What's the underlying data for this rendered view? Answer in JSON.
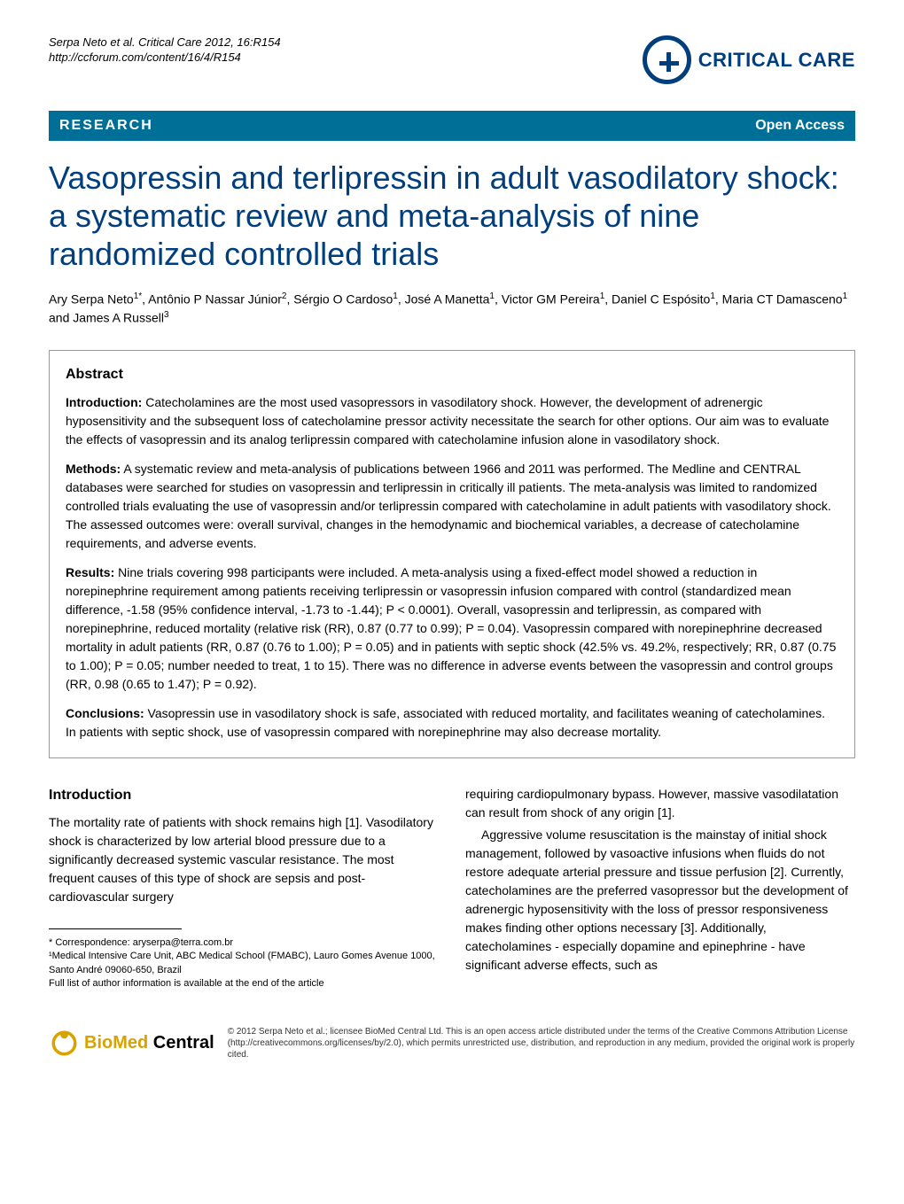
{
  "header": {
    "citation_line1": "Serpa Neto et al. Critical Care 2012, 16:R154",
    "citation_line2": "http://ccforum.com/content/16/4/R154",
    "journal_name": "CRITICAL CARE"
  },
  "research_bar": {
    "label": "RESEARCH",
    "access": "Open Access"
  },
  "title": "Vasopressin and terlipressin in adult vasodilatory shock: a systematic review and meta-analysis of nine randomized controlled trials",
  "authors": "Ary Serpa Neto<sup>1*</sup>, Antônio P Nassar Júnior<sup>2</sup>, Sérgio O Cardoso<sup>1</sup>, José A Manetta<sup>1</sup>, Victor GM Pereira<sup>1</sup>, Daniel C Espósito<sup>1</sup>, Maria CT Damasceno<sup>1</sup> and James A Russell<sup>3</sup>",
  "abstract": {
    "heading": "Abstract",
    "introduction_label": "Introduction:",
    "introduction": " Catecholamines are the most used vasopressors in vasodilatory shock. However, the development of adrenergic hyposensitivity and the subsequent loss of catecholamine pressor activity necessitate the search for other options. Our aim was to evaluate the effects of vasopressin and its analog terlipressin compared with catecholamine infusion alone in vasodilatory shock.",
    "methods_label": "Methods:",
    "methods": " A systematic review and meta-analysis of publications between 1966 and 2011 was performed. The Medline and CENTRAL databases were searched for studies on vasopressin and terlipressin in critically ill patients. The meta-analysis was limited to randomized controlled trials evaluating the use of vasopressin and/or terlipressin compared with catecholamine in adult patients with vasodilatory shock. The assessed outcomes were: overall survival, changes in the hemodynamic and biochemical variables, a decrease of catecholamine requirements, and adverse events.",
    "results_label": "Results:",
    "results": " Nine trials covering 998 participants were included. A meta-analysis using a fixed-effect model showed a reduction in norepinephrine requirement among patients receiving terlipressin or vasopressin infusion compared with control (standardized mean difference, -1.58 (95% confidence interval, -1.73 to -1.44); P < 0.0001). Overall, vasopressin and terlipressin, as compared with norepinephrine, reduced mortality (relative risk (RR), 0.87 (0.77 to 0.99); P = 0.04). Vasopressin compared with norepinephrine decreased mortality in adult patients (RR, 0.87 (0.76 to 1.00); P = 0.05) and in patients with septic shock (42.5% vs. 49.2%, respectively; RR, 0.87 (0.75 to 1.00); P = 0.05; number needed to treat, 1 to 15). There was no difference in adverse events between the vasopressin and control groups (RR, 0.98 (0.65 to 1.47); P = 0.92).",
    "conclusions_label": "Conclusions:",
    "conclusions": " Vasopressin use in vasodilatory shock is safe, associated with reduced mortality, and facilitates weaning of catecholamines. In patients with septic shock, use of vasopressin compared with norepinephrine may also decrease mortality."
  },
  "body": {
    "intro_heading": "Introduction",
    "left_p1": "The mortality rate of patients with shock remains high [1]. Vasodilatory shock is characterized by low arterial blood pressure due to a significantly decreased systemic vascular resistance. The most frequent causes of this type of shock are sepsis and post-cardiovascular surgery",
    "right_p1": "requiring cardiopulmonary bypass. However, massive vasodilatation can result from shock of any origin [1].",
    "right_p2": "Aggressive volume resuscitation is the mainstay of initial shock management, followed by vasoactive infusions when fluids do not restore adequate arterial pressure and tissue perfusion [2]. Currently, catecholamines are the preferred vasopressor but the development of adrenergic hyposensitivity with the loss of pressor responsiveness makes finding other options necessary [3]. Additionally, catecholamines - especially dopamine and epinephrine - have significant adverse effects, such as"
  },
  "footnote": {
    "correspondence": "* Correspondence: aryserpa@terra.com.br",
    "affiliation": "¹Medical Intensive Care Unit, ABC Medical School (FMABC), Lauro Gomes Avenue 1000, Santo André 09060-650, Brazil",
    "full_list": "Full list of author information is available at the end of the article"
  },
  "footer": {
    "bmc_bio": "BioMed",
    "bmc_central": " Central",
    "license": "© 2012 Serpa Neto et al.; licensee BioMed Central Ltd. This is an open access article distributed under the terms of the Creative Commons Attribution License (http://creativecommons.org/licenses/by/2.0), which permits unrestricted use, distribution, and reproduction in any medium, provided the original work is properly cited."
  },
  "colors": {
    "brand_blue": "#003e7e",
    "bar_blue": "#006f97",
    "bmc_yellow": "#d8a200"
  }
}
